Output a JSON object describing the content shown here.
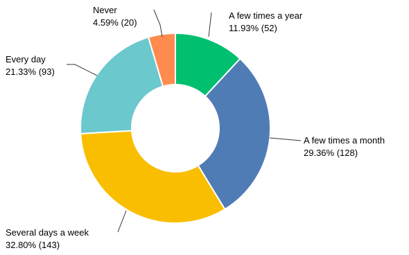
{
  "chart_data": {
    "type": "pie",
    "variant": "donut",
    "title": "",
    "slices": [
      {
        "label": "A few times a year",
        "value_text": "11.93% (52)",
        "percent": 11.93,
        "count": 52,
        "color": "#00BF6F"
      },
      {
        "label": "A few times a month",
        "value_text": "29.36% (128)",
        "percent": 29.36,
        "count": 128,
        "color": "#507CB6"
      },
      {
        "label": "Several days a week",
        "value_text": "32.80% (143)",
        "percent": 32.8,
        "count": 143,
        "color": "#F9BE00"
      },
      {
        "label": "Every day",
        "value_text": "21.33% (93)",
        "percent": 21.33,
        "count": 93,
        "color": "#6BC8CD"
      },
      {
        "label": "Never",
        "value_text": "4.59% (20)",
        "percent": 4.59,
        "count": 20,
        "color": "#FF8B4F"
      }
    ]
  }
}
